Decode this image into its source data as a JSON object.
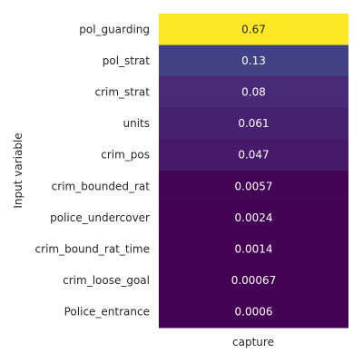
{
  "chart_data": {
    "type": "heatmap",
    "title": "",
    "xlabel": "",
    "ylabel": "Input variable",
    "columns": [
      "capture"
    ],
    "rows": [
      "pol_guarding",
      "pol_strat",
      "crim_strat",
      "units",
      "crim_pos",
      "crim_bounded_rat",
      "police_undercover",
      "crim_bound_rat_time",
      "crim_loose_goal",
      "Police_entrance"
    ],
    "values": [
      0.67,
      0.13,
      0.08,
      0.061,
      0.047,
      0.0057,
      0.0024,
      0.0014,
      0.00067,
      0.0006
    ],
    "value_labels": [
      "0.67",
      "0.13",
      "0.08",
      "0.061",
      "0.047",
      "0.0057",
      "0.0024",
      "0.0014",
      "0.00067",
      "0.0006"
    ],
    "colormap": "viridis",
    "colors": {
      "high": "#fde725",
      "cell_text_light": "#ffffff",
      "cell_text_dark": "#262626"
    }
  }
}
